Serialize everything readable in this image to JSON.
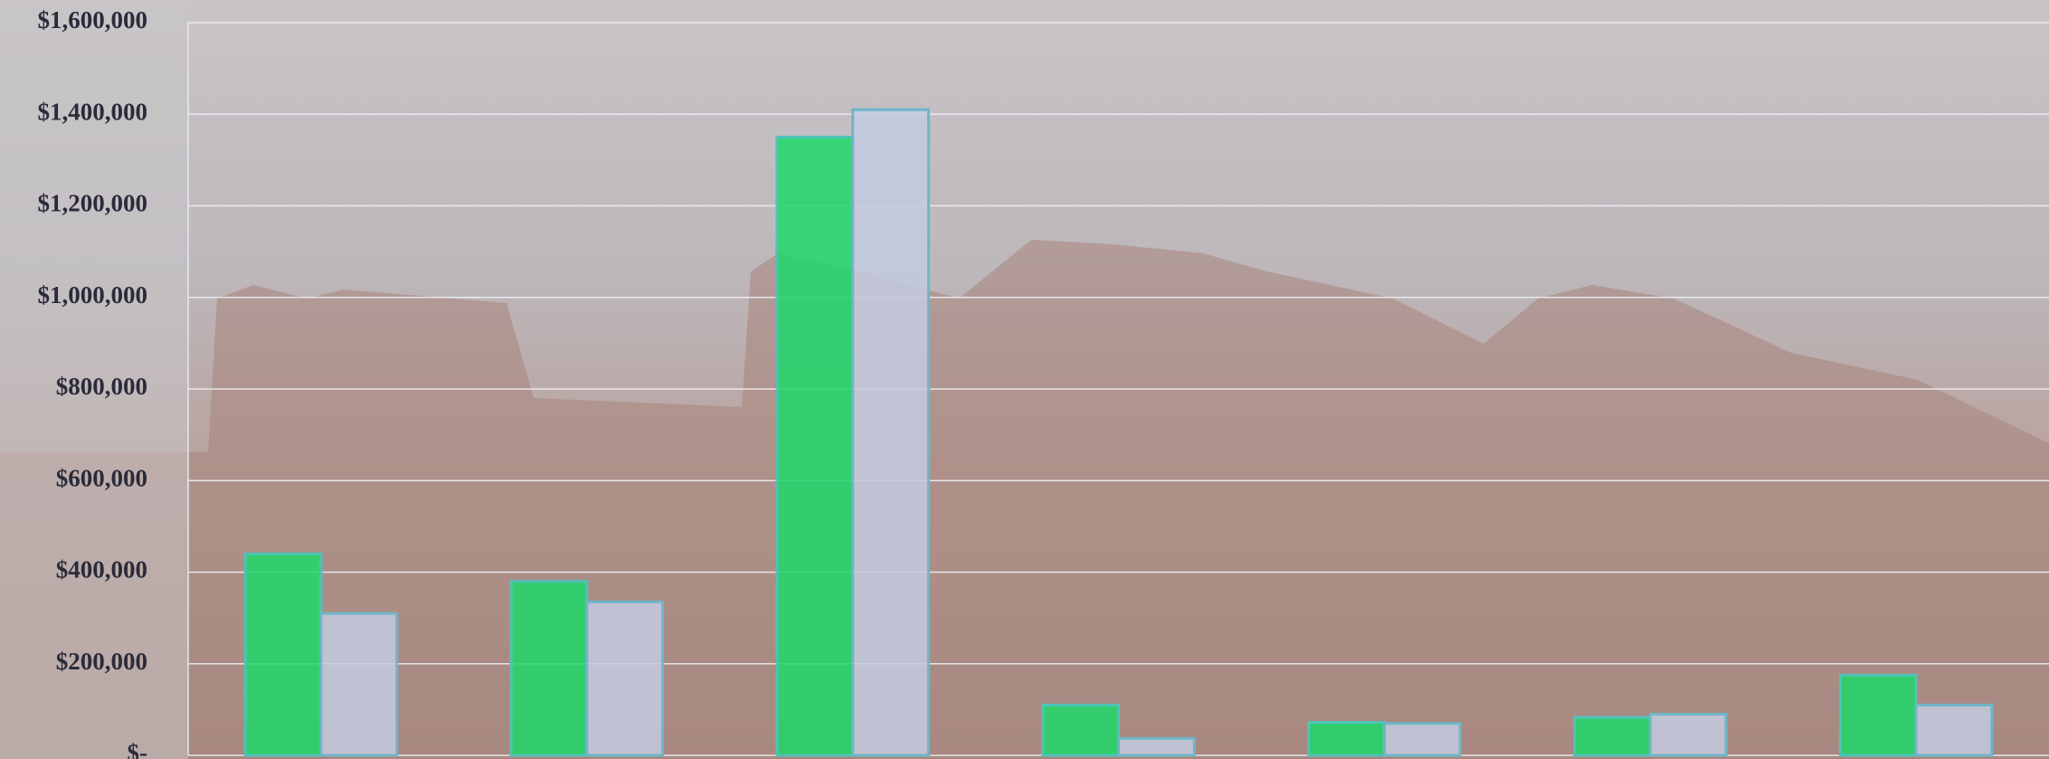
{
  "chart_data": {
    "type": "bar",
    "categories": [
      null,
      null,
      null,
      null,
      null,
      null,
      null
    ],
    "series": [
      {
        "color": "#1ed86a",
        "values": [
          440000,
          380000,
          1350000,
          110000,
          72000,
          83000,
          175000
        ]
      },
      {
        "color": "#c3cbe0",
        "values": [
          310000,
          335000,
          1410000,
          37000,
          70000,
          90000,
          110000
        ]
      }
    ],
    "ylim": [
      0,
      1600000
    ],
    "yticks": [
      {
        "value": 0,
        "label": "$-"
      },
      {
        "value": 200000,
        "label": "$200,000"
      },
      {
        "value": 400000,
        "label": "$400,000"
      },
      {
        "value": 600000,
        "label": "$600,000"
      },
      {
        "value": 800000,
        "label": "$800,000"
      },
      {
        "value": 1000000,
        "label": "$1,000,000"
      },
      {
        "value": 1200000,
        "label": "$1,200,000"
      },
      {
        "value": 1400000,
        "label": "$1,400,000"
      },
      {
        "value": 1600000,
        "label": "$1,600,000"
      }
    ],
    "grid": true
  }
}
